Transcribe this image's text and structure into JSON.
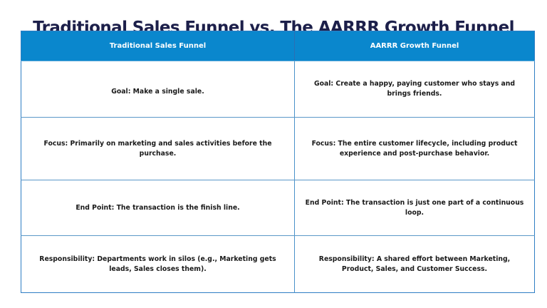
{
  "title": "Traditional Sales Funnel vs. The AARRR Growth Funnel",
  "colors": {
    "title": "#1c1f4a",
    "header_bg": "#0a87cd",
    "header_text": "#ffffff",
    "border": "#2f7ec4",
    "cell_text": "#1a1a1a"
  },
  "table": {
    "headers": [
      "Traditional Sales Funnel",
      "AARRR Growth Funnel"
    ],
    "rows": [
      {
        "traditional": "Goal: Make a single sale.",
        "aarrr": "Goal: Create a happy, paying customer who stays and brings friends."
      },
      {
        "traditional": "Focus: Primarily on marketing and sales activities before the purchase.",
        "aarrr": "Focus: The entire customer lifecycle, including product experience and post-purchase behavior."
      },
      {
        "traditional": "End Point: The transaction is the finish line.",
        "aarrr": "End Point: The transaction is just one part of a continuous loop."
      },
      {
        "traditional": "Responsibility: Departments work in silos (e.g., Marketing gets leads, Sales closes them).",
        "aarrr": "Responsibility: A shared effort between Marketing, Product, Sales, and Customer Success."
      }
    ]
  }
}
